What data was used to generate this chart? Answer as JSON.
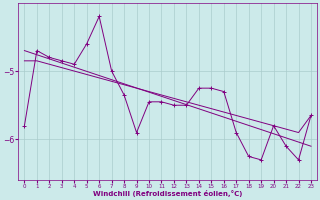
{
  "background_color": "#cceaea",
  "line_color": "#800080",
  "grid_color": "#aacccc",
  "axis_color": "#800080",
  "xlabel": "Windchill (Refroidissement éolien,°C)",
  "series_main": [
    [
      0,
      -5.8
    ],
    [
      1,
      -4.7
    ],
    [
      2,
      -4.8
    ],
    [
      3,
      -4.85
    ],
    [
      4,
      -4.9
    ],
    [
      5,
      -4.6
    ],
    [
      6,
      -4.2
    ],
    [
      7,
      -5.0
    ],
    [
      8,
      -5.35
    ],
    [
      9,
      -5.9
    ],
    [
      10,
      -5.45
    ],
    [
      11,
      -5.45
    ],
    [
      12,
      -5.5
    ],
    [
      13,
      -5.5
    ],
    [
      14,
      -5.25
    ],
    [
      15,
      -5.25
    ],
    [
      16,
      -5.3
    ],
    [
      17,
      -5.9
    ],
    [
      18,
      -6.25
    ],
    [
      19,
      -6.3
    ],
    [
      20,
      -5.8
    ],
    [
      21,
      -6.1
    ],
    [
      22,
      -6.3
    ],
    [
      23,
      -5.65
    ]
  ],
  "series_straight": [
    [
      0,
      -4.7
    ],
    [
      23,
      -6.1
    ]
  ],
  "series_lower": [
    [
      0,
      -4.85
    ],
    [
      1,
      -4.85
    ],
    [
      2,
      -4.9
    ],
    [
      3,
      -4.95
    ],
    [
      4,
      -5.0
    ],
    [
      5,
      -5.05
    ],
    [
      6,
      -5.1
    ],
    [
      7,
      -5.15
    ],
    [
      8,
      -5.2
    ],
    [
      9,
      -5.25
    ],
    [
      10,
      -5.3
    ],
    [
      11,
      -5.35
    ],
    [
      12,
      -5.4
    ],
    [
      13,
      -5.45
    ],
    [
      14,
      -5.5
    ],
    [
      15,
      -5.55
    ],
    [
      16,
      -5.6
    ],
    [
      17,
      -5.65
    ],
    [
      18,
      -5.7
    ],
    [
      19,
      -5.75
    ],
    [
      20,
      -5.8
    ],
    [
      21,
      -5.85
    ],
    [
      22,
      -5.9
    ],
    [
      23,
      -5.65
    ]
  ],
  "yticks": [
    -5,
    -6
  ],
  "ylim": [
    -6.6,
    -4.0
  ],
  "xlim": [
    -0.5,
    23.5
  ],
  "xticks": [
    0,
    1,
    2,
    3,
    4,
    5,
    6,
    7,
    8,
    9,
    10,
    11,
    12,
    13,
    14,
    15,
    16,
    17,
    18,
    19,
    20,
    21,
    22,
    23
  ]
}
